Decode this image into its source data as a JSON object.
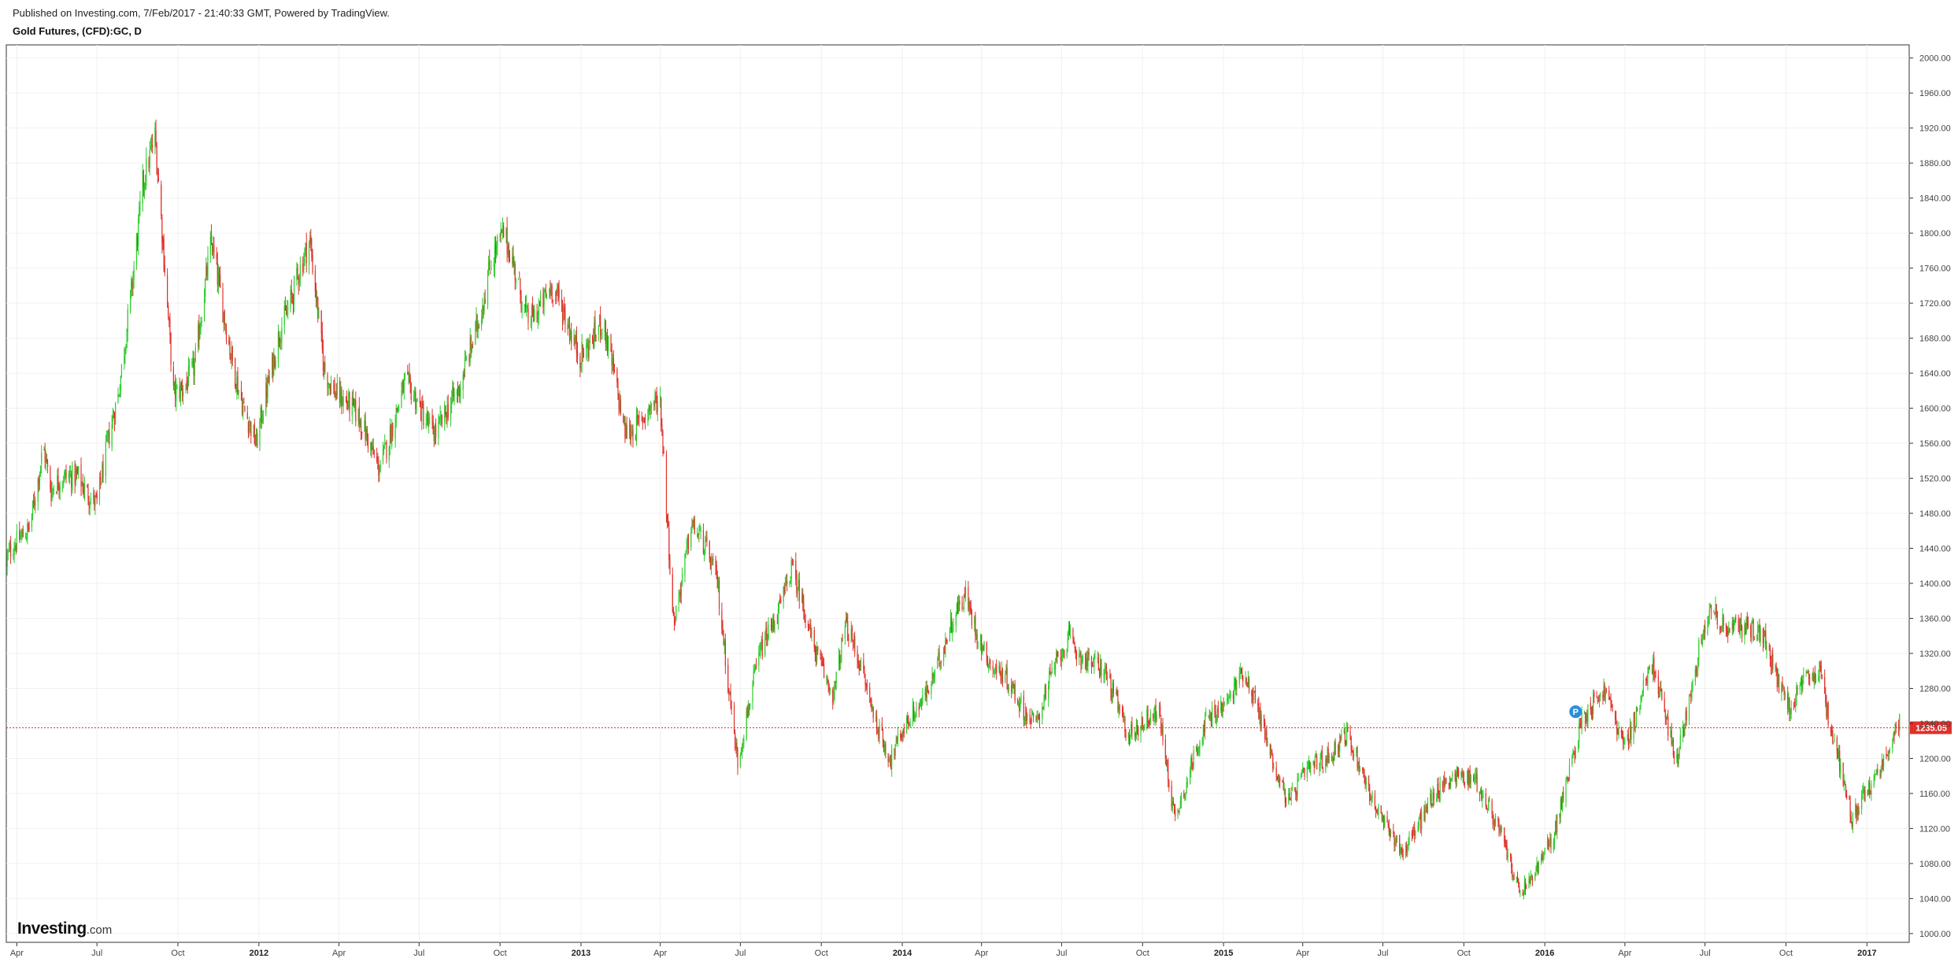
{
  "header": {
    "published": "Published on Investing.com, 7/Feb/2017 - 21:40:33 GMT, Powered by TradingView.",
    "symbol": "Gold Futures, (CFD):GC, D"
  },
  "logo": {
    "brand": "Investing",
    "suffix": ".com"
  },
  "colors": {
    "up": "#2ecc2e",
    "down": "#e0302a",
    "price_line": "#e0302a",
    "marker": "#2b8fd9",
    "grid": "#f0f0f0",
    "border": "#333333"
  },
  "chart_data": {
    "type": "candlestick",
    "ylim": [
      990,
      2015
    ],
    "x_range": [
      "2011-03-20",
      "2017-02-18"
    ],
    "y_ticks": [
      "2000.00",
      "1960.00",
      "1920.00",
      "1880.00",
      "1840.00",
      "1800.00",
      "1760.00",
      "1720.00",
      "1680.00",
      "1640.00",
      "1600.00",
      "1560.00",
      "1520.00",
      "1480.00",
      "1440.00",
      "1400.00",
      "1360.00",
      "1320.00",
      "1280.00",
      "1240.00",
      "1200.00",
      "1160.00",
      "1120.00",
      "1080.00",
      "1040.00",
      "1000.00"
    ],
    "x_ticks": [
      {
        "label": "Apr",
        "date": "2011-04-01",
        "bold": false
      },
      {
        "label": "Jul",
        "date": "2011-07-01",
        "bold": false
      },
      {
        "label": "Oct",
        "date": "2011-10-01",
        "bold": false
      },
      {
        "label": "2012",
        "date": "2012-01-01",
        "bold": true
      },
      {
        "label": "Apr",
        "date": "2012-04-01",
        "bold": false
      },
      {
        "label": "Jul",
        "date": "2012-07-01",
        "bold": false
      },
      {
        "label": "Oct",
        "date": "2012-10-01",
        "bold": false
      },
      {
        "label": "2013",
        "date": "2013-01-01",
        "bold": true
      },
      {
        "label": "Apr",
        "date": "2013-04-01",
        "bold": false
      },
      {
        "label": "Jul",
        "date": "2013-07-01",
        "bold": false
      },
      {
        "label": "Oct",
        "date": "2013-10-01",
        "bold": false
      },
      {
        "label": "2014",
        "date": "2014-01-01",
        "bold": true
      },
      {
        "label": "Apr",
        "date": "2014-04-01",
        "bold": false
      },
      {
        "label": "Jul",
        "date": "2014-07-01",
        "bold": false
      },
      {
        "label": "Oct",
        "date": "2014-10-01",
        "bold": false
      },
      {
        "label": "2015",
        "date": "2015-01-01",
        "bold": true
      },
      {
        "label": "Apr",
        "date": "2015-04-01",
        "bold": false
      },
      {
        "label": "Jul",
        "date": "2015-07-01",
        "bold": false
      },
      {
        "label": "Oct",
        "date": "2015-10-01",
        "bold": false
      },
      {
        "label": "2016",
        "date": "2016-01-01",
        "bold": true
      },
      {
        "label": "Apr",
        "date": "2016-04-01",
        "bold": false
      },
      {
        "label": "Jul",
        "date": "2016-07-01",
        "bold": false
      },
      {
        "label": "Oct",
        "date": "2016-10-01",
        "bold": false
      },
      {
        "label": "2017",
        "date": "2017-01-01",
        "bold": true
      }
    ],
    "last_price": "1235.05",
    "last_price_value": 1235.05,
    "marker": {
      "label": "P",
      "date": "2016-02-05",
      "value": 1248
    },
    "price_path": [
      {
        "date": "2011-03-20",
        "value": 1420
      },
      {
        "date": "2011-04-15",
        "value": 1470
      },
      {
        "date": "2011-05-01",
        "value": 1560
      },
      {
        "date": "2011-05-10",
        "value": 1500
      },
      {
        "date": "2011-06-10",
        "value": 1530
      },
      {
        "date": "2011-07-01",
        "value": 1490
      },
      {
        "date": "2011-07-25",
        "value": 1610
      },
      {
        "date": "2011-08-22",
        "value": 1860
      },
      {
        "date": "2011-09-05",
        "value": 1900
      },
      {
        "date": "2011-09-26",
        "value": 1620
      },
      {
        "date": "2011-10-20",
        "value": 1650
      },
      {
        "date": "2011-11-08",
        "value": 1780
      },
      {
        "date": "2011-12-15",
        "value": 1600
      },
      {
        "date": "2011-12-29",
        "value": 1550
      },
      {
        "date": "2012-01-25",
        "value": 1700
      },
      {
        "date": "2012-02-28",
        "value": 1780
      },
      {
        "date": "2012-03-15",
        "value": 1650
      },
      {
        "date": "2012-05-16",
        "value": 1540
      },
      {
        "date": "2012-06-15",
        "value": 1620
      },
      {
        "date": "2012-07-20",
        "value": 1580
      },
      {
        "date": "2012-08-15",
        "value": 1610
      },
      {
        "date": "2012-09-20",
        "value": 1770
      },
      {
        "date": "2012-10-05",
        "value": 1790
      },
      {
        "date": "2012-11-01",
        "value": 1710
      },
      {
        "date": "2012-11-28",
        "value": 1730
      },
      {
        "date": "2012-12-31",
        "value": 1670
      },
      {
        "date": "2013-01-25",
        "value": 1690
      },
      {
        "date": "2013-02-20",
        "value": 1580
      },
      {
        "date": "2013-04-01",
        "value": 1600
      },
      {
        "date": "2013-04-16",
        "value": 1360
      },
      {
        "date": "2013-05-06",
        "value": 1470
      },
      {
        "date": "2013-06-05",
        "value": 1400
      },
      {
        "date": "2013-06-28",
        "value": 1200
      },
      {
        "date": "2013-07-25",
        "value": 1320
      },
      {
        "date": "2013-08-28",
        "value": 1420
      },
      {
        "date": "2013-09-20",
        "value": 1330
      },
      {
        "date": "2013-10-15",
        "value": 1280
      },
      {
        "date": "2013-10-28",
        "value": 1350
      },
      {
        "date": "2013-12-19",
        "value": 1200
      },
      {
        "date": "2014-01-15",
        "value": 1250
      },
      {
        "date": "2014-03-14",
        "value": 1385
      },
      {
        "date": "2014-04-15",
        "value": 1300
      },
      {
        "date": "2014-06-02",
        "value": 1245
      },
      {
        "date": "2014-07-10",
        "value": 1340
      },
      {
        "date": "2014-08-20",
        "value": 1290
      },
      {
        "date": "2014-09-15",
        "value": 1235
      },
      {
        "date": "2014-10-20",
        "value": 1245
      },
      {
        "date": "2014-11-06",
        "value": 1140
      },
      {
        "date": "2014-12-10",
        "value": 1230
      },
      {
        "date": "2015-01-22",
        "value": 1300
      },
      {
        "date": "2015-03-17",
        "value": 1150
      },
      {
        "date": "2015-04-20",
        "value": 1200
      },
      {
        "date": "2015-05-18",
        "value": 1225
      },
      {
        "date": "2015-07-24",
        "value": 1085
      },
      {
        "date": "2015-08-24",
        "value": 1160
      },
      {
        "date": "2015-10-14",
        "value": 1185
      },
      {
        "date": "2015-12-03",
        "value": 1050
      },
      {
        "date": "2016-01-10",
        "value": 1100
      },
      {
        "date": "2016-02-11",
        "value": 1250
      },
      {
        "date": "2016-03-10",
        "value": 1270
      },
      {
        "date": "2016-04-01",
        "value": 1220
      },
      {
        "date": "2016-05-02",
        "value": 1300
      },
      {
        "date": "2016-05-30",
        "value": 1205
      },
      {
        "date": "2016-07-06",
        "value": 1370
      },
      {
        "date": "2016-08-15",
        "value": 1345
      },
      {
        "date": "2016-09-08",
        "value": 1335
      },
      {
        "date": "2016-10-06",
        "value": 1255
      },
      {
        "date": "2016-11-08",
        "value": 1305
      },
      {
        "date": "2016-12-15",
        "value": 1125
      },
      {
        "date": "2017-01-10",
        "value": 1185
      },
      {
        "date": "2017-02-07",
        "value": 1235
      }
    ]
  }
}
